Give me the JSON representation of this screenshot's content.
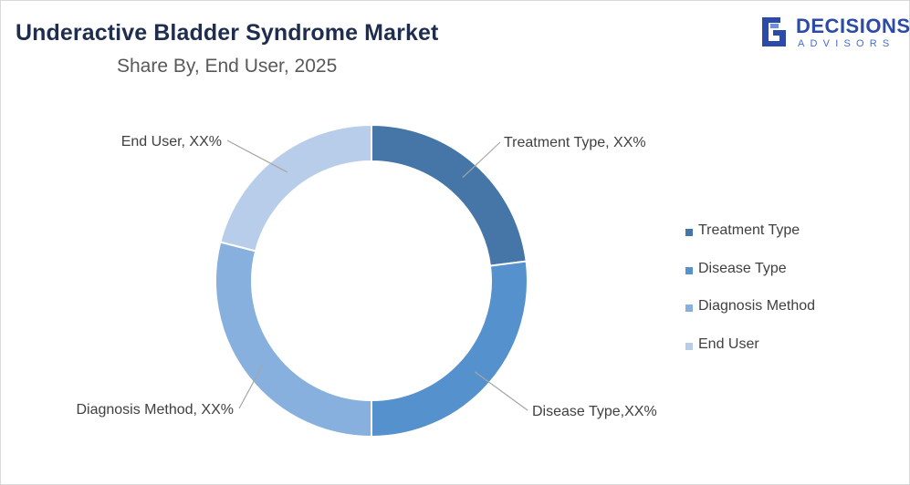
{
  "header": {
    "title": "Underactive Bladder Syndrome Market",
    "subtitle": "Share By, End User, 2025"
  },
  "logo": {
    "word": "DECISIONS",
    "sub": "ADVISORS",
    "icon": "logo-g-icon",
    "color": "#2c4aa8"
  },
  "chart_data": {
    "type": "pie",
    "style": "donut",
    "categories": [
      "Treatment Type",
      "Disease Type",
      "Diagnosis Method",
      "End User"
    ],
    "values": [
      23,
      27,
      29,
      21
    ],
    "colors": [
      "#4676a8",
      "#5591cc",
      "#87b0de",
      "#b8cde9"
    ],
    "data_labels": [
      "Treatment Type, XX%",
      "Disease Type,XX%",
      "Diagnosis Method, XX%",
      "End User, XX%"
    ],
    "legend_position": "right"
  }
}
